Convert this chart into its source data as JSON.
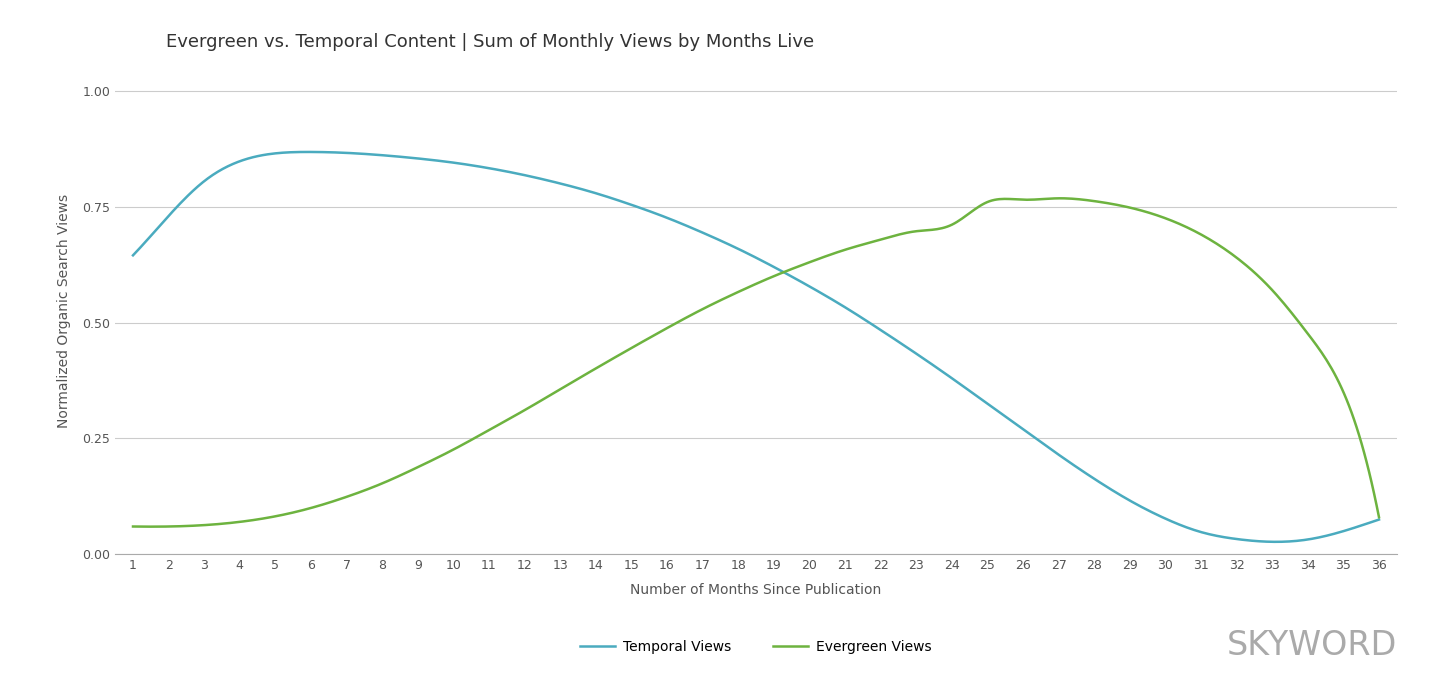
{
  "title": "Evergreen vs. Temporal Content | Sum of Monthly Views by Months Live",
  "xlabel": "Number of Months Since Publication",
  "ylabel": "Normalized Organic Search Views",
  "ylim": [
    0.0,
    1.05
  ],
  "yticks": [
    0.0,
    0.25,
    0.5,
    0.75,
    1.0
  ],
  "xticks": [
    1,
    2,
    3,
    4,
    5,
    6,
    7,
    8,
    9,
    10,
    11,
    12,
    13,
    14,
    15,
    16,
    17,
    18,
    19,
    20,
    21,
    22,
    23,
    24,
    25,
    26,
    27,
    28,
    29,
    30,
    31,
    32,
    33,
    34,
    35,
    36
  ],
  "temporal_color": "#4AABBF",
  "evergreen_color": "#6DB33F",
  "background_color": "#FFFFFF",
  "grid_color": "#CCCCCC",
  "title_fontsize": 13,
  "label_fontsize": 10,
  "tick_fontsize": 9,
  "legend_fontsize": 10,
  "skyword_text": "SKYWORD",
  "skyword_color": "#AAAAAA",
  "temporal_label": "Temporal Views",
  "evergreen_label": "Evergreen Views",
  "temporal_values": [
    0.645,
    0.73,
    0.805,
    0.848,
    0.865,
    0.868,
    0.866,
    0.861,
    0.854,
    0.845,
    0.833,
    0.818,
    0.8,
    0.779,
    0.754,
    0.726,
    0.694,
    0.659,
    0.62,
    0.578,
    0.533,
    0.484,
    0.433,
    0.38,
    0.325,
    0.27,
    0.215,
    0.163,
    0.116,
    0.077,
    0.048,
    0.033,
    0.027,
    0.032,
    0.05,
    0.075
  ],
  "evergreen_values": [
    0.06,
    0.06,
    0.063,
    0.07,
    0.082,
    0.1,
    0.124,
    0.153,
    0.188,
    0.226,
    0.268,
    0.311,
    0.356,
    0.401,
    0.445,
    0.488,
    0.529,
    0.566,
    0.6,
    0.63,
    0.657,
    0.679,
    0.697,
    0.711,
    0.76,
    0.765,
    0.768,
    0.762,
    0.748,
    0.725,
    0.69,
    0.64,
    0.57,
    0.476,
    0.35,
    0.08
  ],
  "x_values": [
    1,
    2,
    3,
    4,
    5,
    6,
    7,
    8,
    9,
    10,
    11,
    12,
    13,
    14,
    15,
    16,
    17,
    18,
    19,
    20,
    21,
    22,
    23,
    24,
    25,
    26,
    27,
    28,
    29,
    30,
    31,
    32,
    33,
    34,
    35,
    36
  ]
}
